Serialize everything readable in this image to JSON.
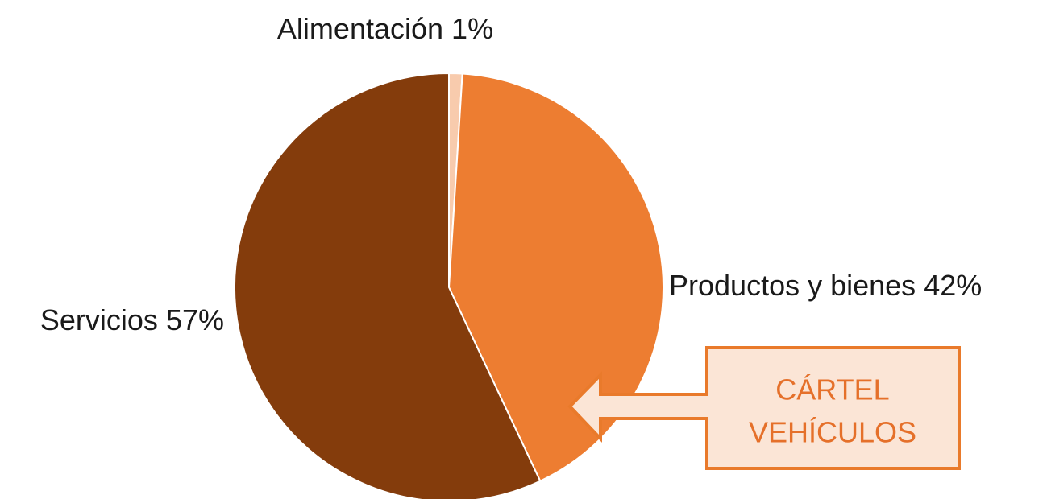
{
  "chart_data": {
    "type": "pie",
    "categories": [
      "Alimentación",
      "Productos y bienes",
      "Servicios"
    ],
    "values": [
      1,
      42,
      57
    ],
    "value_labels": [
      "1%",
      "42%",
      "57%"
    ],
    "colors": [
      "#f8cbad",
      "#ed7d31",
      "#843c0c"
    ],
    "annotation": [
      "CÁRTEL",
      "VEHÍCULOS"
    ]
  }
}
